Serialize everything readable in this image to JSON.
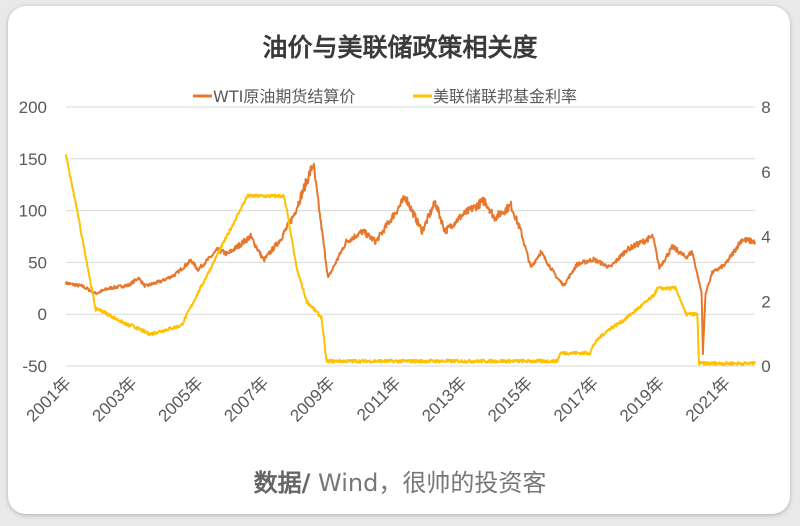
{
  "chart_data": {
    "type": "line",
    "title": "油价与美联储政策相关度",
    "source_bold": "数据/",
    "source_text": " Wind，很帅的投资客",
    "xlabel": "",
    "ylabel": "",
    "x_ticks": [
      "2001年",
      "2003年",
      "2005年",
      "2007年",
      "2009年",
      "2011年",
      "2013年",
      "2015年",
      "2017年",
      "2019年",
      "2021年"
    ],
    "xlim": [
      2001.0,
      2021.9
    ],
    "ylim_left": [
      -50,
      200
    ],
    "yticks_left": [
      "200",
      "150",
      "100",
      "50",
      "0",
      "-50"
    ],
    "ylim_right": [
      0,
      8
    ],
    "yticks_right": [
      "8",
      "6",
      "4",
      "2",
      "0"
    ],
    "grid": true,
    "legend_position": "top",
    "series": [
      {
        "name": "WTI原油期货结算价",
        "axis": "left",
        "color": "#E8772E",
        "x": [
          2001.0,
          2001.5,
          2001.9,
          2002.3,
          2002.9,
          2003.2,
          2003.4,
          2003.9,
          2004.3,
          2004.8,
          2005.0,
          2005.6,
          2005.9,
          2006.6,
          2007.0,
          2007.5,
          2007.9,
          2008.5,
          2008.95,
          2009.5,
          2010.0,
          2010.4,
          2011.3,
          2011.8,
          2012.2,
          2012.5,
          2013.0,
          2013.7,
          2014.0,
          2014.5,
          2014.8,
          2015.1,
          2015.4,
          2015.9,
          2016.1,
          2016.5,
          2017.0,
          2017.5,
          2018.0,
          2018.8,
          2019.0,
          2019.4,
          2019.8,
          2020.0,
          2020.28,
          2020.32,
          2020.4,
          2020.6,
          2021.0,
          2021.5,
          2021.9
        ],
        "values": [
          30,
          27,
          20,
          25,
          28,
          35,
          27,
          32,
          38,
          52,
          43,
          62,
          58,
          75,
          52,
          72,
          95,
          145,
          35,
          70,
          80,
          70,
          113,
          80,
          108,
          80,
          95,
          110,
          93,
          105,
          80,
          45,
          60,
          35,
          28,
          48,
          53,
          45,
          62,
          75,
          45,
          65,
          55,
          60,
          20,
          -37,
          20,
          40,
          48,
          72,
          70
        ]
      },
      {
        "name": "美联储联邦基金利率",
        "axis": "right",
        "color": "#FFC000",
        "x": [
          2001.0,
          2001.3,
          2001.9,
          2002.0,
          2002.9,
          2003.0,
          2003.5,
          2003.6,
          2004.5,
          2005.0,
          2006.5,
          2007.6,
          2007.7,
          2008.0,
          2008.3,
          2008.75,
          2008.9,
          2015.9,
          2016.0,
          2016.9,
          2017.0,
          2017.2,
          2017.5,
          2017.9,
          2018.2,
          2018.5,
          2018.8,
          2018.95,
          2019.5,
          2019.6,
          2019.8,
          2020.15,
          2020.2,
          2021.9
        ],
        "values": [
          6.5,
          5.0,
          1.75,
          1.75,
          1.25,
          1.25,
          1.0,
          1.0,
          1.25,
          2.25,
          5.25,
          5.25,
          4.8,
          3.0,
          2.0,
          1.5,
          0.15,
          0.15,
          0.4,
          0.4,
          0.65,
          0.9,
          1.15,
          1.4,
          1.65,
          1.9,
          2.15,
          2.4,
          2.4,
          2.15,
          1.6,
          1.6,
          0.08,
          0.08
        ]
      }
    ]
  }
}
